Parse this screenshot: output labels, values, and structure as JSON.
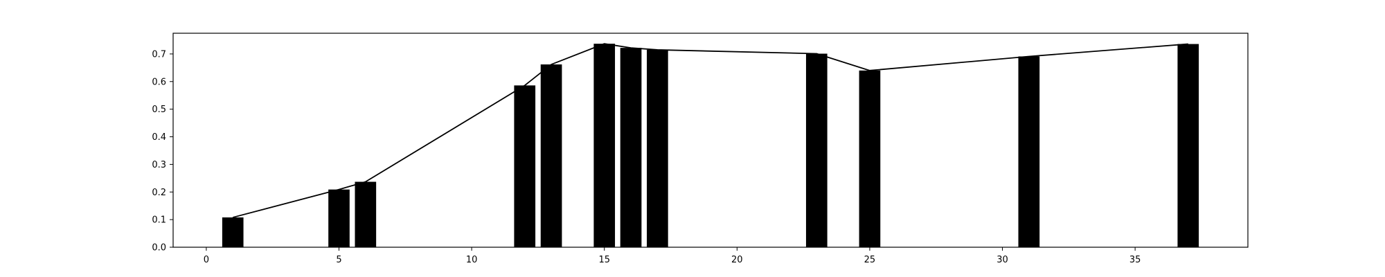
{
  "chart_data": {
    "type": "bar",
    "title": "",
    "xlabel": "",
    "ylabel": "",
    "xlim": [
      -1.25,
      39.25
    ],
    "ylim": [
      0,
      0.775
    ],
    "x_ticks": [
      0,
      5,
      10,
      15,
      20,
      25,
      30,
      35
    ],
    "y_ticks": [
      0.0,
      0.1,
      0.2,
      0.3,
      0.4,
      0.5,
      0.6,
      0.7
    ],
    "y_tick_labels": [
      "0.0",
      "0.1",
      "0.2",
      "0.3",
      "0.4",
      "0.5",
      "0.6",
      "0.7"
    ],
    "grid": false,
    "legend": null,
    "bar_width": 0.8,
    "bar_color": "#000000",
    "line_color": "#000000",
    "series": [
      {
        "type": "bar",
        "x": [
          1,
          5,
          6,
          12,
          13,
          15,
          16,
          17,
          23,
          25,
          31,
          37
        ],
        "values": [
          0.108,
          0.209,
          0.237,
          0.586,
          0.662,
          0.737,
          0.722,
          0.715,
          0.701,
          0.64,
          0.691,
          0.736
        ]
      },
      {
        "type": "line",
        "x": [
          1,
          5,
          6,
          12,
          13,
          15,
          16,
          17,
          23,
          25,
          31,
          37
        ],
        "values": [
          0.108,
          0.209,
          0.237,
          0.586,
          0.662,
          0.737,
          0.722,
          0.715,
          0.701,
          0.64,
          0.691,
          0.736
        ]
      }
    ]
  }
}
